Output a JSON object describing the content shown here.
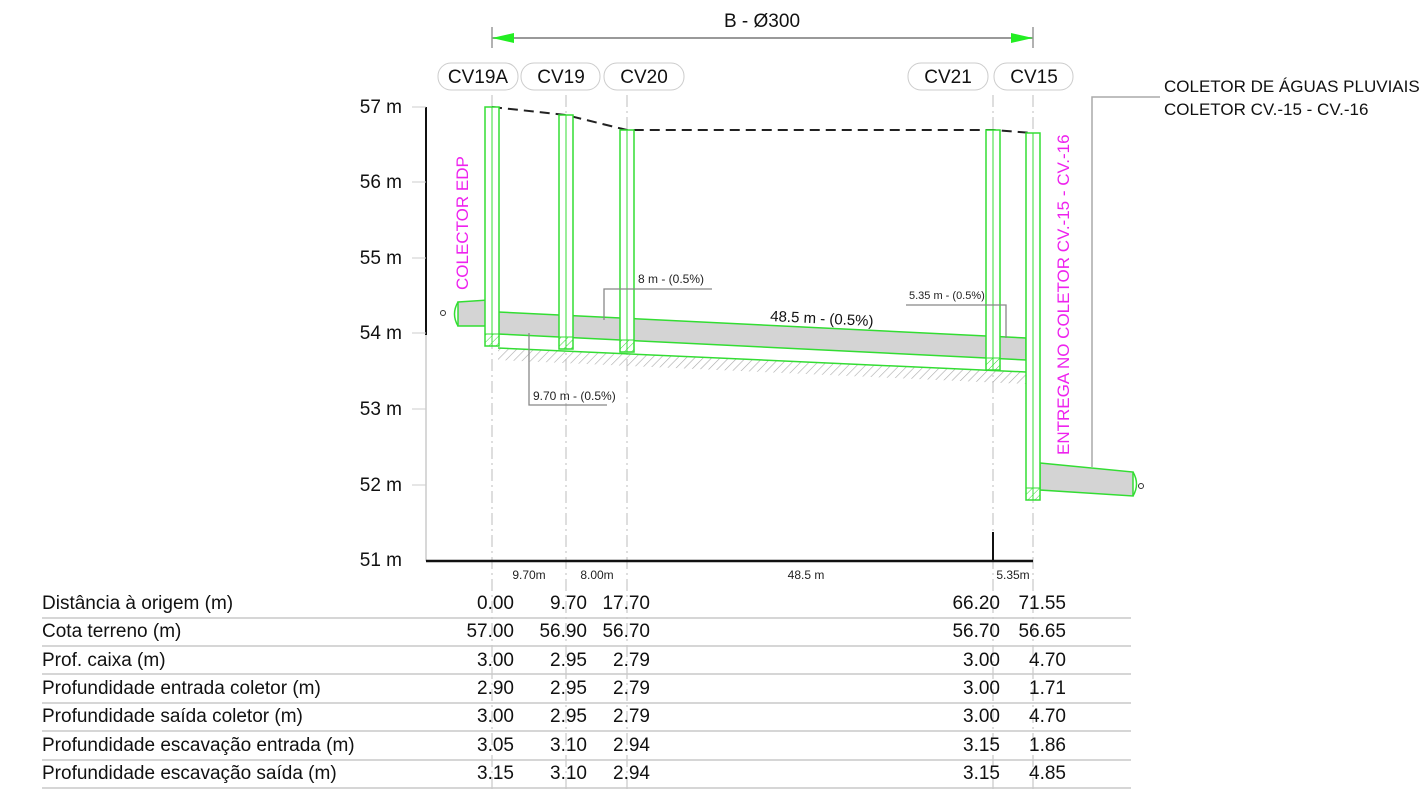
{
  "title": "B - Ø300",
  "y_axis": {
    "labels": [
      "57 m",
      "56 m",
      "55 m",
      "54 m",
      "53 m",
      "52 m",
      "51 m"
    ]
  },
  "chambers": [
    {
      "id": "CV19A",
      "label": "CV19A"
    },
    {
      "id": "CV19",
      "label": "CV19"
    },
    {
      "id": "CV20",
      "label": "CV20"
    },
    {
      "id": "CV21",
      "label": "CV21"
    },
    {
      "id": "CV15",
      "label": "CV15"
    }
  ],
  "vertical_labels": {
    "left": "COLECTOR EDP",
    "right": "ENTREGA NO COLETOR CV.-15 - CV.-16"
  },
  "callout": {
    "line1": "COLETOR DE ÁGUAS PLUVIAIS",
    "line2": "COLETOR CV.-15 - CV.-16"
  },
  "segment_labels": {
    "main": "48.5 m - (0.5%)",
    "s1": "9.70 m - (0.5%)",
    "s2": "8 m - (0.5%)",
    "s3": "5.35 m - (0.5%)"
  },
  "distance_labels": [
    "9.70m",
    "8.00m",
    "48.5 m",
    "5.35m"
  ],
  "colors": {
    "pipe_outline": "#33dd33",
    "pipe_fill": "#d4d4d4",
    "magenta": "#ee22ee",
    "grid": "#c8c8c8",
    "arrow": "#22ee22"
  },
  "chart_data": {
    "type": "table",
    "columns": [
      "CV19A",
      "CV19",
      "CV20",
      "CV21",
      "CV15"
    ],
    "rows": [
      {
        "label": "Distância à origem (m)",
        "values": [
          "0.00",
          "9.70",
          "17.70",
          "66.20",
          "71.55"
        ]
      },
      {
        "label": "Cota terreno (m)",
        "values": [
          "57.00",
          "56.90",
          "56.70",
          "56.70",
          "56.65"
        ]
      },
      {
        "label": "Prof. caixa (m)",
        "values": [
          "3.00",
          "2.95",
          "2.79",
          "3.00",
          "4.70"
        ]
      },
      {
        "label": "Profundidade entrada coletor (m)",
        "values": [
          "2.90",
          "2.95",
          "2.79",
          "3.00",
          "1.71"
        ]
      },
      {
        "label": "Profundidade saída coletor (m)",
        "values": [
          "3.00",
          "2.95",
          "2.79",
          "3.00",
          "4.70"
        ]
      },
      {
        "label": "Profundidade escavação entrada (m)",
        "values": [
          "3.05",
          "3.10",
          "2.94",
          "3.15",
          "1.86"
        ]
      },
      {
        "label": "Profundidade escavação saída (m)",
        "values": [
          "3.15",
          "3.10",
          "2.94",
          "3.15",
          "4.85"
        ]
      }
    ]
  }
}
